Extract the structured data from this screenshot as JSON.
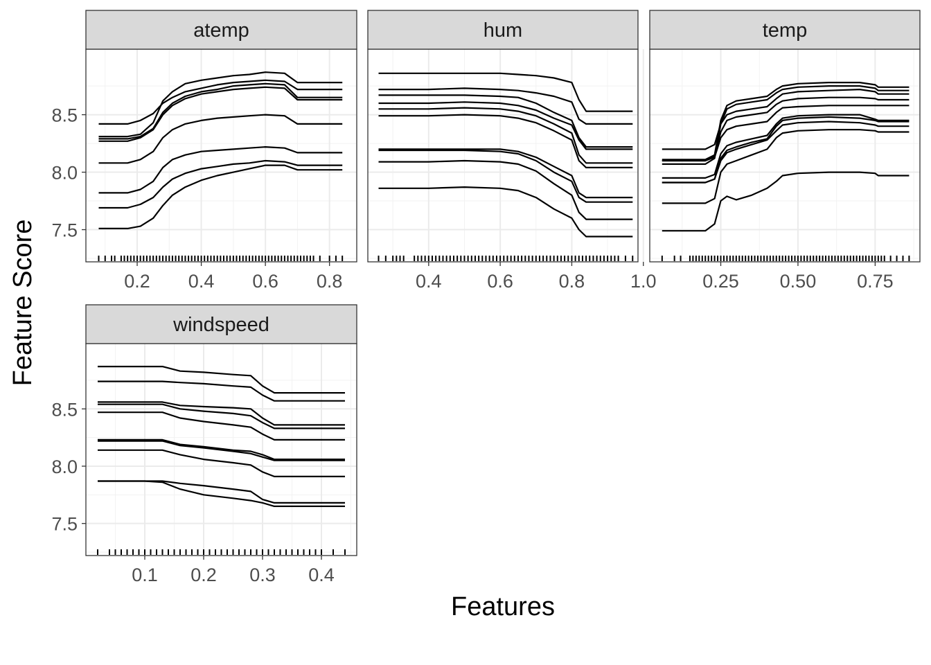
{
  "chart_data": {
    "type": "line",
    "title": "",
    "xlabel": "Features",
    "ylabel": "Feature Score",
    "grid": true,
    "shared_y": {
      "ylim": [
        7.22,
        9.07
      ],
      "ticks": [
        7.5,
        8.0,
        8.5
      ],
      "tick_labels": [
        "7.5",
        "8.0",
        "8.5"
      ]
    },
    "facets": [
      {
        "name": "atemp",
        "xlim": [
          0.04,
          0.885
        ],
        "xticks": [
          0.2,
          0.4,
          0.6,
          0.8
        ],
        "xtick_labels": [
          "0.2",
          "0.4",
          "0.6",
          "0.8"
        ],
        "x": [
          0.08,
          0.17,
          0.21,
          0.25,
          0.28,
          0.31,
          0.35,
          0.4,
          0.45,
          0.5,
          0.55,
          0.6,
          0.66,
          0.7,
          0.84
        ],
        "series": [
          [
            8.31,
            8.31,
            8.33,
            8.43,
            8.62,
            8.7,
            8.77,
            8.8,
            8.82,
            8.84,
            8.85,
            8.87,
            8.86,
            8.78,
            8.78
          ],
          [
            8.42,
            8.42,
            8.45,
            8.51,
            8.6,
            8.65,
            8.7,
            8.73,
            8.76,
            8.78,
            8.79,
            8.8,
            8.79,
            8.72,
            8.72
          ],
          [
            8.29,
            8.29,
            8.31,
            8.38,
            8.52,
            8.6,
            8.66,
            8.7,
            8.72,
            8.75,
            8.76,
            8.77,
            8.76,
            8.65,
            8.65
          ],
          [
            8.27,
            8.27,
            8.3,
            8.37,
            8.5,
            8.58,
            8.64,
            8.68,
            8.7,
            8.72,
            8.73,
            8.74,
            8.73,
            8.63,
            8.63
          ],
          [
            8.08,
            8.08,
            8.11,
            8.18,
            8.3,
            8.37,
            8.42,
            8.45,
            8.47,
            8.48,
            8.49,
            8.5,
            8.49,
            8.42,
            8.42
          ],
          [
            7.82,
            7.82,
            7.85,
            7.92,
            8.04,
            8.11,
            8.15,
            8.18,
            8.19,
            8.2,
            8.21,
            8.22,
            8.21,
            8.17,
            8.17
          ],
          [
            7.69,
            7.69,
            7.72,
            7.78,
            7.87,
            7.94,
            7.99,
            8.03,
            8.05,
            8.07,
            8.08,
            8.1,
            8.09,
            8.06,
            8.06
          ],
          [
            7.51,
            7.51,
            7.53,
            7.6,
            7.71,
            7.8,
            7.87,
            7.93,
            7.97,
            8.0,
            8.03,
            8.06,
            8.06,
            8.02,
            8.02
          ]
        ],
        "rug": [
          0.08,
          0.1,
          0.12,
          0.13,
          0.15,
          0.16,
          0.17,
          0.18,
          0.19,
          0.2,
          0.21,
          0.22,
          0.23,
          0.24,
          0.25,
          0.26,
          0.27,
          0.28,
          0.29,
          0.3,
          0.31,
          0.32,
          0.33,
          0.34,
          0.35,
          0.36,
          0.37,
          0.38,
          0.39,
          0.4,
          0.41,
          0.42,
          0.43,
          0.44,
          0.45,
          0.46,
          0.47,
          0.48,
          0.49,
          0.5,
          0.51,
          0.52,
          0.53,
          0.54,
          0.55,
          0.56,
          0.57,
          0.58,
          0.59,
          0.6,
          0.61,
          0.62,
          0.63,
          0.64,
          0.65,
          0.66,
          0.67,
          0.68,
          0.69,
          0.7,
          0.71,
          0.72,
          0.73,
          0.74,
          0.75,
          0.77,
          0.8,
          0.82,
          0.84
        ]
      },
      {
        "name": "hum",
        "xlim": [
          0.23,
          0.985
        ],
        "xticks": [
          0.4,
          0.6,
          0.8,
          1.0
        ],
        "xtick_labels": [
          "0.4",
          "0.6",
          "0.8",
          "1.0"
        ],
        "x": [
          0.26,
          0.4,
          0.5,
          0.6,
          0.65,
          0.7,
          0.75,
          0.8,
          0.82,
          0.84,
          0.86,
          0.97
        ],
        "series": [
          [
            8.86,
            8.86,
            8.86,
            8.86,
            8.85,
            8.84,
            8.82,
            8.78,
            8.63,
            8.53,
            8.53,
            8.53
          ],
          [
            8.72,
            8.72,
            8.73,
            8.72,
            8.71,
            8.69,
            8.66,
            8.61,
            8.46,
            8.42,
            8.42,
            8.42
          ],
          [
            8.67,
            8.67,
            8.67,
            8.66,
            8.65,
            8.6,
            8.52,
            8.45,
            8.3,
            8.22,
            8.22,
            8.22
          ],
          [
            8.6,
            8.6,
            8.61,
            8.6,
            8.58,
            8.54,
            8.47,
            8.41,
            8.28,
            8.2,
            8.2,
            8.2
          ],
          [
            8.55,
            8.55,
            8.56,
            8.55,
            8.53,
            8.49,
            8.42,
            8.34,
            8.15,
            8.08,
            8.08,
            8.08
          ],
          [
            8.49,
            8.49,
            8.5,
            8.49,
            8.47,
            8.43,
            8.36,
            8.28,
            8.1,
            8.04,
            8.04,
            8.04
          ],
          [
            8.2,
            8.2,
            8.2,
            8.2,
            8.18,
            8.13,
            8.05,
            7.97,
            7.82,
            7.78,
            7.78,
            7.78
          ],
          [
            8.19,
            8.19,
            8.19,
            8.18,
            8.16,
            8.1,
            8.0,
            7.92,
            7.78,
            7.74,
            7.74,
            7.74
          ],
          [
            8.09,
            8.09,
            8.1,
            8.09,
            8.07,
            8.01,
            7.9,
            7.8,
            7.65,
            7.59,
            7.59,
            7.59
          ],
          [
            7.86,
            7.86,
            7.87,
            7.86,
            7.84,
            7.78,
            7.68,
            7.6,
            7.5,
            7.44,
            7.44,
            7.44
          ]
        ],
        "rug": [
          0.26,
          0.28,
          0.3,
          0.31,
          0.32,
          0.33,
          0.36,
          0.37,
          0.38,
          0.39,
          0.4,
          0.41,
          0.42,
          0.43,
          0.44,
          0.45,
          0.46,
          0.47,
          0.48,
          0.49,
          0.5,
          0.51,
          0.52,
          0.53,
          0.54,
          0.55,
          0.56,
          0.57,
          0.58,
          0.59,
          0.6,
          0.61,
          0.62,
          0.63,
          0.64,
          0.65,
          0.66,
          0.67,
          0.68,
          0.69,
          0.7,
          0.71,
          0.72,
          0.73,
          0.74,
          0.75,
          0.76,
          0.77,
          0.78,
          0.79,
          0.8,
          0.81,
          0.82,
          0.83,
          0.84,
          0.85,
          0.86,
          0.87,
          0.88,
          0.89,
          0.9,
          0.91,
          0.92,
          0.93,
          0.95,
          0.97
        ]
      },
      {
        "name": "temp",
        "xlim": [
          0.02,
          0.895
        ],
        "xticks": [
          0.25,
          0.5,
          0.75
        ],
        "xtick_labels": [
          "0.25",
          "0.50",
          "0.75"
        ],
        "x": [
          0.06,
          0.2,
          0.23,
          0.25,
          0.27,
          0.3,
          0.35,
          0.4,
          0.43,
          0.45,
          0.5,
          0.6,
          0.7,
          0.75,
          0.76,
          0.86
        ],
        "series": [
          [
            8.11,
            8.11,
            8.15,
            8.45,
            8.58,
            8.62,
            8.64,
            8.66,
            8.72,
            8.75,
            8.77,
            8.78,
            8.78,
            8.76,
            8.74,
            8.74
          ],
          [
            8.07,
            8.07,
            8.12,
            8.42,
            8.55,
            8.59,
            8.61,
            8.63,
            8.69,
            8.72,
            8.74,
            8.75,
            8.75,
            8.73,
            8.71,
            8.71
          ],
          [
            8.2,
            8.2,
            8.24,
            8.42,
            8.5,
            8.53,
            8.55,
            8.57,
            8.64,
            8.68,
            8.7,
            8.71,
            8.72,
            8.7,
            8.68,
            8.68
          ],
          [
            8.1,
            8.1,
            8.14,
            8.35,
            8.45,
            8.48,
            8.5,
            8.52,
            8.59,
            8.62,
            8.64,
            8.65,
            8.65,
            8.64,
            8.63,
            8.63
          ],
          [
            8.1,
            8.1,
            8.13,
            8.3,
            8.37,
            8.4,
            8.42,
            8.44,
            8.52,
            8.56,
            8.57,
            8.58,
            8.58,
            8.58,
            8.58,
            8.58
          ],
          [
            7.95,
            7.95,
            7.98,
            8.16,
            8.23,
            8.26,
            8.29,
            8.32,
            8.42,
            8.47,
            8.49,
            8.5,
            8.5,
            8.46,
            8.45,
            8.45
          ],
          [
            7.91,
            7.91,
            7.94,
            8.12,
            8.19,
            8.22,
            8.26,
            8.29,
            8.4,
            8.45,
            8.47,
            8.48,
            8.47,
            8.45,
            8.44,
            8.44
          ],
          [
            7.91,
            7.91,
            7.94,
            8.1,
            8.17,
            8.2,
            8.24,
            8.28,
            8.36,
            8.41,
            8.43,
            8.44,
            8.43,
            8.41,
            8.4,
            8.4
          ],
          [
            7.73,
            7.73,
            7.77,
            8.0,
            8.07,
            8.1,
            8.15,
            8.2,
            8.3,
            8.34,
            8.36,
            8.37,
            8.37,
            8.36,
            8.35,
            8.35
          ],
          [
            7.49,
            7.49,
            7.55,
            7.75,
            7.79,
            7.76,
            7.8,
            7.86,
            7.92,
            7.97,
            7.99,
            8.0,
            8.0,
            7.99,
            7.97,
            7.97
          ]
        ],
        "rug": [
          0.06,
          0.1,
          0.12,
          0.15,
          0.16,
          0.17,
          0.18,
          0.19,
          0.2,
          0.21,
          0.22,
          0.23,
          0.24,
          0.25,
          0.26,
          0.27,
          0.28,
          0.29,
          0.3,
          0.31,
          0.32,
          0.33,
          0.34,
          0.35,
          0.36,
          0.37,
          0.38,
          0.39,
          0.4,
          0.41,
          0.42,
          0.43,
          0.44,
          0.45,
          0.46,
          0.47,
          0.48,
          0.49,
          0.5,
          0.51,
          0.52,
          0.53,
          0.54,
          0.55,
          0.56,
          0.57,
          0.58,
          0.59,
          0.6,
          0.61,
          0.62,
          0.63,
          0.64,
          0.65,
          0.66,
          0.67,
          0.68,
          0.69,
          0.7,
          0.71,
          0.72,
          0.73,
          0.74,
          0.75,
          0.76,
          0.77,
          0.78,
          0.8,
          0.82,
          0.84,
          0.86
        ]
      },
      {
        "name": "windspeed",
        "xlim": [
          0.0,
          0.46
        ],
        "xticks": [
          0.1,
          0.2,
          0.3,
          0.4
        ],
        "xtick_labels": [
          "0.1",
          "0.2",
          "0.3",
          "0.4"
        ],
        "x": [
          0.02,
          0.1,
          0.13,
          0.16,
          0.2,
          0.25,
          0.28,
          0.3,
          0.32,
          0.34,
          0.44
        ],
        "series": [
          [
            8.87,
            8.87,
            8.87,
            8.83,
            8.82,
            8.8,
            8.79,
            8.7,
            8.64,
            8.64,
            8.64
          ],
          [
            8.74,
            8.74,
            8.74,
            8.73,
            8.72,
            8.7,
            8.69,
            8.62,
            8.57,
            8.57,
            8.57
          ],
          [
            8.56,
            8.56,
            8.56,
            8.53,
            8.52,
            8.51,
            8.5,
            8.42,
            8.36,
            8.36,
            8.36
          ],
          [
            8.54,
            8.54,
            8.54,
            8.5,
            8.48,
            8.46,
            8.44,
            8.38,
            8.33,
            8.33,
            8.33
          ],
          [
            8.47,
            8.47,
            8.47,
            8.42,
            8.39,
            8.36,
            8.34,
            8.28,
            8.23,
            8.23,
            8.23
          ],
          [
            8.23,
            8.23,
            8.23,
            8.19,
            8.17,
            8.14,
            8.13,
            8.1,
            8.06,
            8.06,
            8.06
          ],
          [
            8.22,
            8.22,
            8.22,
            8.18,
            8.16,
            8.13,
            8.11,
            8.08,
            8.05,
            8.05,
            8.05
          ],
          [
            8.14,
            8.14,
            8.14,
            8.1,
            8.06,
            8.03,
            8.01,
            7.95,
            7.91,
            7.91,
            7.91
          ],
          [
            7.87,
            7.87,
            7.87,
            7.85,
            7.83,
            7.8,
            7.78,
            7.71,
            7.68,
            7.68,
            7.68
          ],
          [
            7.87,
            7.87,
            7.86,
            7.8,
            7.75,
            7.72,
            7.7,
            7.68,
            7.65,
            7.65,
            7.65
          ]
        ],
        "rug": [
          0.02,
          0.04,
          0.05,
          0.06,
          0.07,
          0.08,
          0.09,
          0.1,
          0.11,
          0.12,
          0.13,
          0.14,
          0.15,
          0.16,
          0.17,
          0.18,
          0.19,
          0.2,
          0.21,
          0.22,
          0.23,
          0.24,
          0.25,
          0.26,
          0.27,
          0.28,
          0.29,
          0.3,
          0.31,
          0.32,
          0.33,
          0.34,
          0.35,
          0.36,
          0.37,
          0.38,
          0.39,
          0.4,
          0.42,
          0.44
        ]
      }
    ]
  }
}
